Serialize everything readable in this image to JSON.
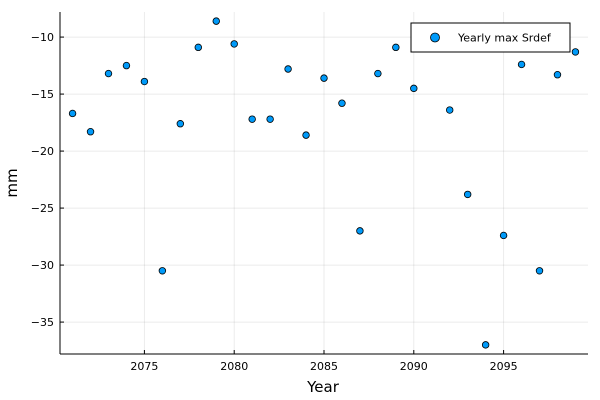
{
  "chart_data": {
    "type": "scatter",
    "title": "",
    "xlabel": "Year",
    "ylabel": "mm",
    "xlim": [
      2070.3,
      2099.7
    ],
    "ylim": [
      -37.8,
      -7.8
    ],
    "xticks": [
      2075,
      2080,
      2085,
      2090,
      2095
    ],
    "yticks": [
      -35,
      -30,
      -25,
      -20,
      -15,
      -10
    ],
    "grid": true,
    "legend_position": "top-right",
    "series": [
      {
        "name": "Yearly max Srdef",
        "color": "#009af9",
        "x": [
          2071,
          2072,
          2073,
          2074,
          2075,
          2076,
          2077,
          2078,
          2079,
          2080,
          2081,
          2082,
          2083,
          2084,
          2085,
          2086,
          2087,
          2088,
          2089,
          2090,
          2092,
          2093,
          2094,
          2095,
          2096,
          2097,
          2098,
          2099
        ],
        "y": [
          -16.7,
          -18.3,
          -13.2,
          -12.5,
          -13.9,
          -30.5,
          -17.6,
          -10.9,
          -8.6,
          -10.6,
          -17.2,
          -17.2,
          -12.8,
          -18.6,
          -13.6,
          -15.8,
          -27.0,
          -13.2,
          -10.9,
          -14.5,
          -16.4,
          -23.8,
          -37.0,
          -27.4,
          -12.4,
          -30.5,
          -13.3,
          -11.3
        ]
      }
    ]
  }
}
